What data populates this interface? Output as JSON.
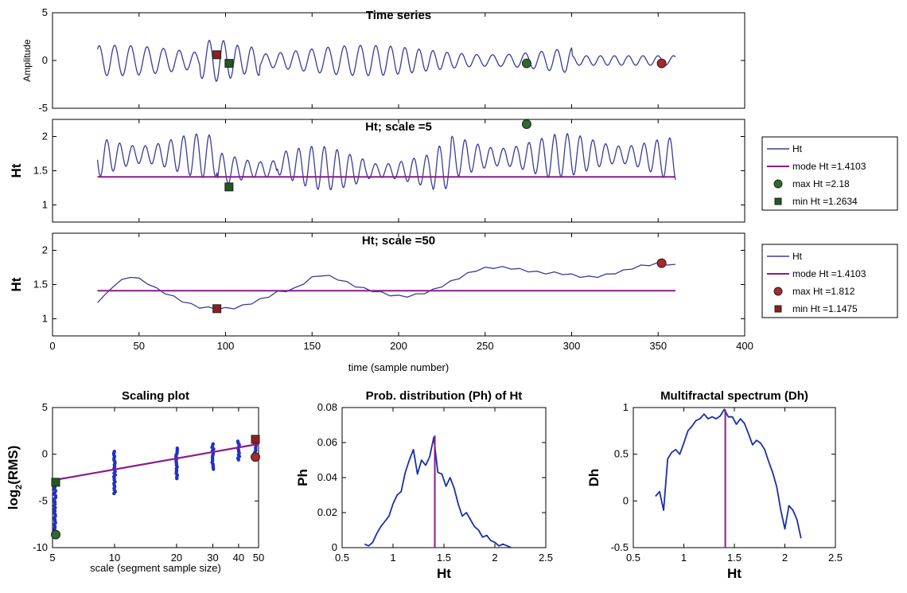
{
  "colors": {
    "series": "#3b3b9b",
    "mode": "#8b1c8b",
    "max_green": "#2e6b2e",
    "min_green": "#1f5a1f",
    "max_red": "#a52a2a",
    "min_red": "#8b2020",
    "scatter": "#2030c8",
    "fit": "#8b1c8b",
    "dist": "#1a2fa8"
  },
  "chart_data": [
    {
      "id": "timeseries",
      "type": "line",
      "title": "Time series",
      "ylabel": "Amplitude",
      "xlim": [
        0,
        400
      ],
      "ylim": [
        -5,
        5
      ],
      "yticks": [
        "5",
        "0",
        "-5"
      ],
      "ytick_values": [
        5,
        0,
        -5
      ],
      "x_range": [
        26,
        360
      ],
      "markers": [
        {
          "name": "min-ht-scale5",
          "shape": "square",
          "color": "min_green",
          "x": 102,
          "y": -0.3
        },
        {
          "name": "max-ht-scale5",
          "shape": "circle",
          "color": "max_green",
          "x": 274,
          "y": -0.3
        },
        {
          "name": "min-ht-scale50",
          "shape": "square",
          "color": "min_red",
          "x": 95,
          "y": 0.6
        },
        {
          "name": "max-ht-scale50",
          "shape": "circle",
          "color": "max_red",
          "x": 352,
          "y": -0.3
        }
      ]
    },
    {
      "id": "ht5",
      "type": "line",
      "title": "Ht; scale =5",
      "ylabel": "Ht",
      "xlim": [
        0,
        400
      ],
      "ylim": [
        0.75,
        2.25
      ],
      "yticks": [
        "2",
        "1.5",
        "1"
      ],
      "ytick_values": [
        2,
        1.5,
        1
      ],
      "mode": 1.4103,
      "max": {
        "x": 274,
        "y": 2.18
      },
      "min": {
        "x": 102,
        "y": 1.2634
      },
      "legend": [
        "Ht",
        "mode Ht =1.4103",
        "max Ht =2.18",
        "min Ht =1.2634"
      ]
    },
    {
      "id": "ht50",
      "type": "line",
      "title": "Ht; scale =50",
      "ylabel": "Ht",
      "xlabel": "time (sample number)",
      "xlim": [
        0,
        400
      ],
      "ylim": [
        0.75,
        2.25
      ],
      "yticks": [
        "2",
        "1.5",
        "1"
      ],
      "ytick_values": [
        2,
        1.5,
        1
      ],
      "xticks": [
        "0",
        "50",
        "100",
        "150",
        "200",
        "250",
        "300",
        "350",
        "400"
      ],
      "xtick_values": [
        0,
        50,
        100,
        150,
        200,
        250,
        300,
        350,
        400
      ],
      "mode": 1.4103,
      "max": {
        "x": 352,
        "y": 1.812
      },
      "min": {
        "x": 95,
        "y": 1.1475
      },
      "x": [
        26,
        30,
        35,
        40,
        45,
        50,
        55,
        60,
        65,
        70,
        75,
        80,
        85,
        90,
        95,
        100,
        105,
        110,
        115,
        120,
        125,
        130,
        135,
        140,
        145,
        150,
        155,
        160,
        165,
        170,
        175,
        180,
        185,
        190,
        195,
        200,
        205,
        210,
        215,
        220,
        225,
        230,
        235,
        240,
        245,
        250,
        255,
        260,
        265,
        270,
        275,
        280,
        285,
        290,
        295,
        300,
        305,
        310,
        315,
        320,
        325,
        330,
        335,
        340,
        345,
        350,
        355,
        360
      ],
      "values": [
        1.25,
        1.33,
        1.48,
        1.56,
        1.62,
        1.58,
        1.52,
        1.44,
        1.38,
        1.32,
        1.26,
        1.21,
        1.17,
        1.16,
        1.15,
        1.15,
        1.16,
        1.19,
        1.23,
        1.28,
        1.33,
        1.39,
        1.41,
        1.44,
        1.52,
        1.6,
        1.64,
        1.62,
        1.58,
        1.53,
        1.48,
        1.44,
        1.41,
        1.38,
        1.35,
        1.33,
        1.33,
        1.35,
        1.38,
        1.42,
        1.48,
        1.54,
        1.6,
        1.66,
        1.71,
        1.74,
        1.75,
        1.75,
        1.74,
        1.72,
        1.7,
        1.68,
        1.67,
        1.67,
        1.66,
        1.64,
        1.62,
        1.61,
        1.62,
        1.64,
        1.67,
        1.7,
        1.74,
        1.77,
        1.79,
        1.81,
        1.8,
        1.78
      ],
      "legend": [
        "Ht",
        "mode Ht =1.4103",
        "max Ht =1.812",
        "min Ht =1.1475"
      ]
    },
    {
      "id": "scaling",
      "type": "scatter",
      "title": "Scaling plot",
      "xlabel": "scale (segment sample size)",
      "ylabel_base": "log",
      "ylabel_sub": "2",
      "ylabel_rest": "(RMS)",
      "xscale": "log2",
      "xlim": [
        5,
        50
      ],
      "ylim": [
        -10,
        5
      ],
      "xticks": [
        "5",
        "10",
        "20",
        "30",
        "40",
        "50"
      ],
      "xtick_values": [
        5,
        10,
        20,
        30,
        40,
        50
      ],
      "yticks": [
        "5",
        "0",
        "-5",
        "-10"
      ],
      "ytick_values": [
        5,
        0,
        -5,
        -10
      ],
      "scatter_columns": [
        {
          "x": 5,
          "ymin": -8.6,
          "ymax": -3.0
        },
        {
          "x": 10,
          "ymin": -4.2,
          "ymax": 0.4
        },
        {
          "x": 20,
          "ymin": -2.6,
          "ymax": 0.8
        },
        {
          "x": 30,
          "ymin": -1.6,
          "ymax": 1.2
        },
        {
          "x": 40,
          "ymin": -0.6,
          "ymax": 1.5
        },
        {
          "x": 50,
          "ymin": 0.2,
          "ymax": 1.6
        }
      ],
      "fit": {
        "x": [
          5,
          50
        ],
        "y": [
          -2.8,
          1.1
        ]
      },
      "markers": [
        {
          "name": "scaling-min-square-green",
          "shape": "square",
          "color": "min_green",
          "x": 5,
          "y": -3.0
        },
        {
          "name": "scaling-max-circle-green",
          "shape": "circle",
          "color": "max_green",
          "x": 5,
          "y": -8.6
        },
        {
          "name": "scaling-min-square-red",
          "shape": "square",
          "color": "min_red",
          "x": 50,
          "y": 1.6
        },
        {
          "name": "scaling-max-circle-red",
          "shape": "circle",
          "color": "max_red",
          "x": 50,
          "y": -0.3
        }
      ]
    },
    {
      "id": "ph",
      "type": "line",
      "title": "Prob. distribution (Ph) of Ht",
      "xlabel": "Ht",
      "ylabel": "Ph",
      "xlim": [
        0.5,
        2.5
      ],
      "ylim": [
        0,
        0.08
      ],
      "xticks": [
        "0.5",
        "1",
        "1.5",
        "2",
        "2.5"
      ],
      "xtick_values": [
        0.5,
        1,
        1.5,
        2,
        2.5
      ],
      "yticks": [
        "0.08",
        "0.06",
        "0.04",
        "0.02",
        "0"
      ],
      "ytick_values": [
        0.08,
        0.06,
        0.04,
        0.02,
        0
      ],
      "mode": 1.4103,
      "mode_y": 0.064,
      "x": [
        0.72,
        0.76,
        0.8,
        0.84,
        0.88,
        0.92,
        0.96,
        1.0,
        1.04,
        1.08,
        1.12,
        1.16,
        1.2,
        1.24,
        1.28,
        1.32,
        1.36,
        1.4,
        1.44,
        1.48,
        1.52,
        1.56,
        1.6,
        1.64,
        1.68,
        1.72,
        1.76,
        1.8,
        1.84,
        1.88,
        1.92,
        1.96,
        2.0,
        2.04,
        2.08,
        2.12,
        2.16
      ],
      "values": [
        0.002,
        0.001,
        0.003,
        0.008,
        0.012,
        0.015,
        0.018,
        0.025,
        0.03,
        0.032,
        0.043,
        0.05,
        0.056,
        0.042,
        0.05,
        0.047,
        0.052,
        0.063,
        0.043,
        0.042,
        0.035,
        0.04,
        0.034,
        0.025,
        0.018,
        0.02,
        0.016,
        0.012,
        0.01,
        0.006,
        0.007,
        0.004,
        0.003,
        0.001,
        0.002,
        0.001,
        0.0
      ]
    },
    {
      "id": "dh",
      "type": "line",
      "title": "Multifractal spectrum (Dh)",
      "xlabel": "Ht",
      "ylabel": "Dh",
      "xlim": [
        0.5,
        2.5
      ],
      "ylim": [
        -0.5,
        1
      ],
      "xticks": [
        "0.5",
        "1",
        "1.5",
        "2",
        "2.5"
      ],
      "xtick_values": [
        0.5,
        1,
        1.5,
        2,
        2.5
      ],
      "yticks": [
        "1",
        "0.5",
        "0",
        "-0.5"
      ],
      "ytick_values": [
        1,
        0.5,
        0,
        -0.5
      ],
      "mode": 1.4103,
      "mode_y": 0.98,
      "x": [
        0.72,
        0.76,
        0.8,
        0.84,
        0.88,
        0.92,
        0.96,
        1.0,
        1.04,
        1.08,
        1.12,
        1.16,
        1.2,
        1.24,
        1.28,
        1.32,
        1.36,
        1.4,
        1.44,
        1.48,
        1.52,
        1.56,
        1.6,
        1.64,
        1.68,
        1.72,
        1.76,
        1.8,
        1.84,
        1.88,
        1.92,
        1.96,
        2.0,
        2.04,
        2.08,
        2.12,
        2.16
      ],
      "values": [
        0.05,
        0.1,
        -0.1,
        0.45,
        0.52,
        0.55,
        0.5,
        0.62,
        0.75,
        0.8,
        0.86,
        0.88,
        0.93,
        0.88,
        0.9,
        0.88,
        0.91,
        0.98,
        0.9,
        0.9,
        0.82,
        0.88,
        0.83,
        0.72,
        0.6,
        0.65,
        0.62,
        0.55,
        0.42,
        0.3,
        0.15,
        -0.1,
        -0.3,
        -0.05,
        -0.1,
        -0.2,
        -0.4
      ]
    }
  ]
}
